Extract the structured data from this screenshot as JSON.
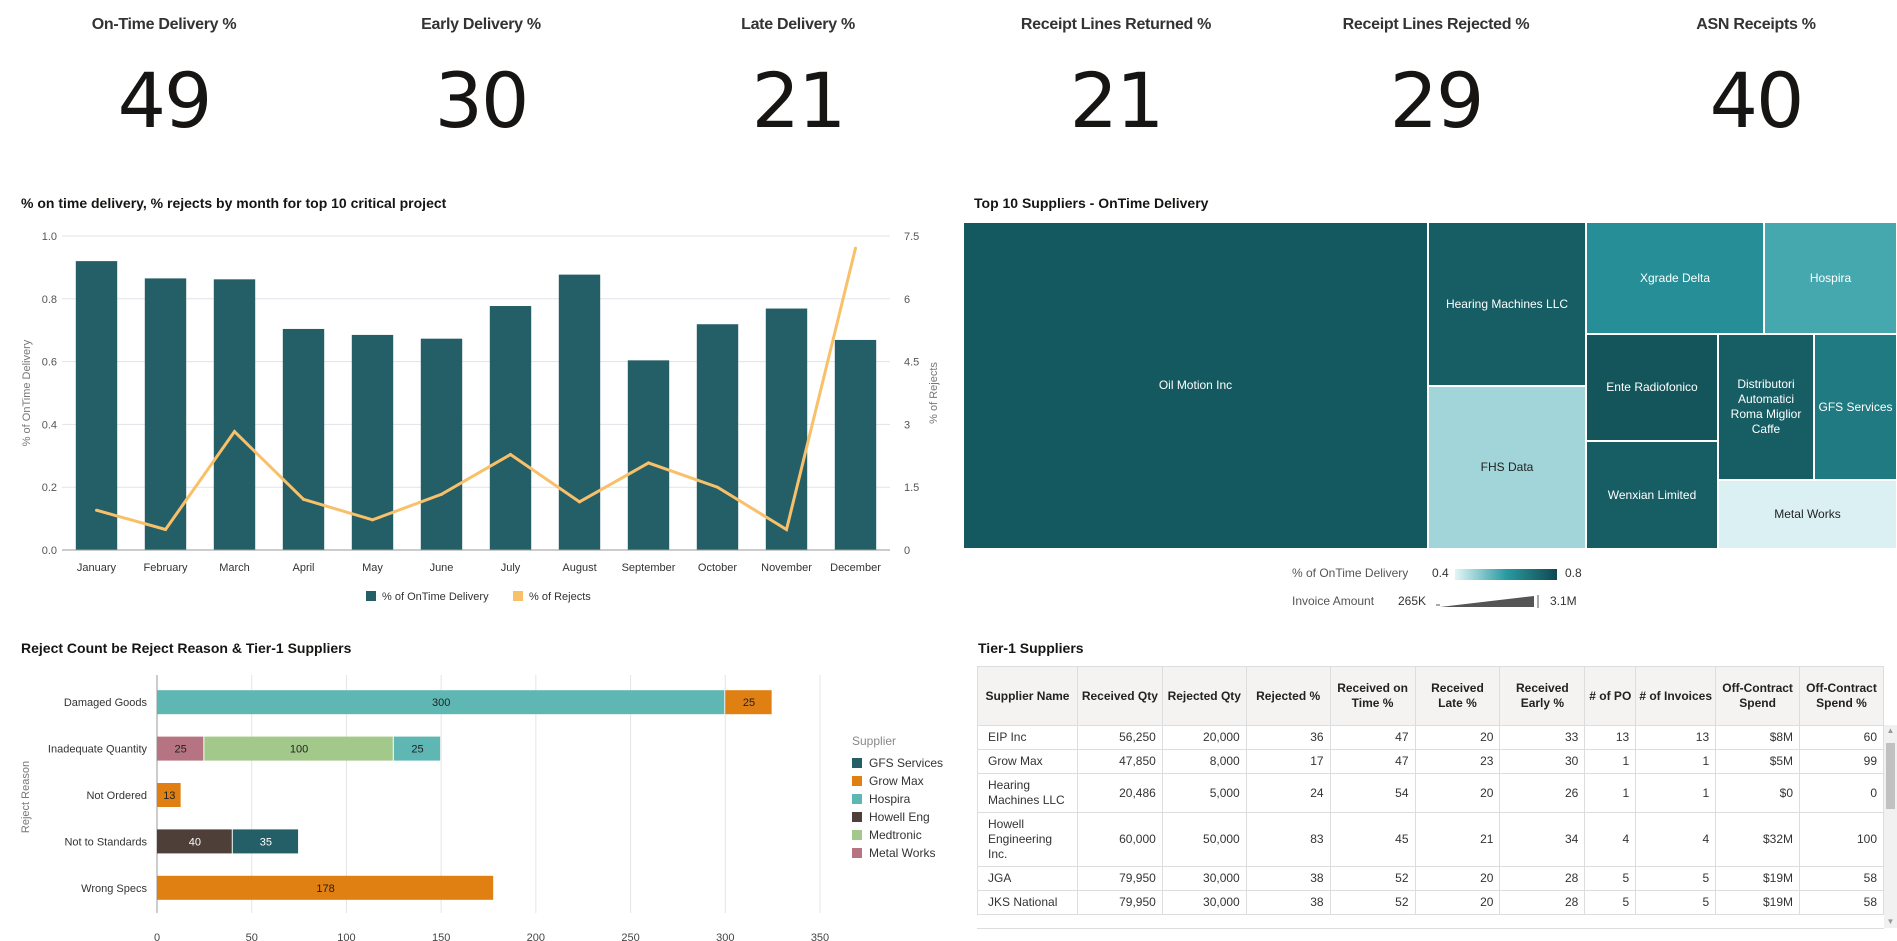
{
  "kpis": [
    {
      "title": "On-Time Delivery %",
      "value": "49"
    },
    {
      "title": "Early Delivery %",
      "value": "30"
    },
    {
      "title": "Late Delivery %",
      "value": "21"
    },
    {
      "title": "Receipt Lines Returned %",
      "value": "21"
    },
    {
      "title": "Receipt Lines Rejected %",
      "value": "29"
    },
    {
      "title": "ASN Receipts %",
      "value": "40"
    }
  ],
  "colors": {
    "teal_dark": "#245e66",
    "orange_line": "#f9c06a",
    "gfs": "#245e66",
    "grow_max": "#e07f12",
    "hospira": "#5fb7b4",
    "howell": "#4e4038",
    "medtronic": "#a2c98a",
    "metal_works": "#b67482"
  },
  "chart_data": [
    {
      "type": "bar",
      "title": "% on time delivery, % rejects by month for top 10 critical project",
      "categories": [
        "January",
        "February",
        "March",
        "April",
        "May",
        "June",
        "July",
        "August",
        "September",
        "October",
        "November",
        "December"
      ],
      "series": [
        {
          "name": "% of OnTime Delivery",
          "type": "bar",
          "axis": "left",
          "values": [
            0.92,
            0.865,
            0.862,
            0.704,
            0.685,
            0.673,
            0.777,
            0.877,
            0.604,
            0.719,
            0.769,
            0.669
          ]
        },
        {
          "name": "% of Rejects",
          "type": "line",
          "axis": "right",
          "values": [
            0.95,
            0.49,
            2.83,
            1.21,
            0.72,
            1.33,
            2.28,
            1.15,
            2.08,
            1.5,
            0.49,
            7.21
          ]
        }
      ],
      "ylabel": "% of OnTime Delivery",
      "y2label": "% of Rejects",
      "ylim": [
        0,
        1.0
      ],
      "y2lim": [
        0,
        7.5
      ],
      "yticks": [
        "0.0",
        "0.2",
        "0.4",
        "0.6",
        "0.8",
        "1.0"
      ],
      "y2ticks": [
        "0",
        "1.5",
        "3",
        "4.5",
        "6",
        "7.5"
      ],
      "grid": true,
      "legend": "bottom"
    },
    {
      "type": "treemap",
      "title": "Top 10 Suppliers - OnTime Delivery",
      "items": [
        {
          "name": "Oil Motion Inc",
          "color_value": 0.76
        },
        {
          "name": "Hearing Machines LLC",
          "color_value": 0.75
        },
        {
          "name": "FHS Data",
          "color_value": 0.47
        },
        {
          "name": "Xgrade Delta",
          "color_value": 0.63
        },
        {
          "name": "Hospira",
          "color_value": 0.57
        },
        {
          "name": "Ente Radiofonico",
          "color_value": 0.77
        },
        {
          "name": "Wenxian Limited",
          "color_value": 0.75
        },
        {
          "name": "Distributori Automatici Roma Miglior Caffe",
          "color_value": 0.75
        },
        {
          "name": "GFS Services",
          "color_value": 0.68
        },
        {
          "name": "Metal Works",
          "color_value": 0.41
        }
      ],
      "color_legend": {
        "label": "% of OnTime Delivery",
        "min": "0.4",
        "max": "0.8"
      },
      "size_legend": {
        "label": "Invoice Amount",
        "min": "265K",
        "max": "3.1M"
      }
    },
    {
      "type": "bar",
      "orientation": "horizontal",
      "stacked": true,
      "title": "Reject Count be Reject Reason & Tier-1 Suppliers",
      "categories": [
        "Damaged Goods",
        "Inadequate Quantity",
        "Not Ordered",
        "Not to Standards",
        "Wrong Specs"
      ],
      "ylabel": "Reject Reason",
      "xlim": [
        0,
        350
      ],
      "xticks": [
        "0",
        "50",
        "100",
        "150",
        "200",
        "250",
        "300",
        "350"
      ],
      "legend_title": "Supplier",
      "legend": "right",
      "legend_items": [
        "GFS Services",
        "Grow Max",
        "Hospira",
        "Howell Eng",
        "Medtronic",
        "Metal Works"
      ],
      "stacks": [
        [
          {
            "supplier": "Hospira",
            "value": 300
          },
          {
            "supplier": "Grow Max",
            "value": 25
          }
        ],
        [
          {
            "supplier": "Metal Works",
            "value": 25
          },
          {
            "supplier": "Medtronic",
            "value": 100
          },
          {
            "supplier": "Hospira",
            "value": 25
          }
        ],
        [
          {
            "supplier": "Grow Max",
            "value": 13
          }
        ],
        [
          {
            "supplier": "Howell Eng",
            "value": 40
          },
          {
            "supplier": "GFS Services",
            "value": 35
          }
        ],
        [
          {
            "supplier": "Grow Max",
            "value": 178
          }
        ]
      ]
    }
  ],
  "table": {
    "title": "Tier-1 Suppliers",
    "columns": [
      "Supplier Name",
      "Received Qty",
      "Rejected Qty",
      "Rejected %",
      "Received on Time %",
      "Received Late %",
      "Received Early %",
      "# of PO",
      "# of Invoices",
      "Off-Contract Spend",
      "Off-Contract Spend %"
    ],
    "rows": [
      [
        "EIP Inc",
        "56,250",
        "20,000",
        "36",
        "47",
        "20",
        "33",
        "13",
        "13",
        "$8M",
        "60"
      ],
      [
        "Grow Max",
        "47,850",
        "8,000",
        "17",
        "47",
        "23",
        "30",
        "1",
        "1",
        "$5M",
        "99"
      ],
      [
        "Hearing Machines LLC",
        "20,486",
        "5,000",
        "24",
        "54",
        "20",
        "26",
        "1",
        "1",
        "$0",
        "0"
      ],
      [
        "Howell Engineering Inc.",
        "60,000",
        "50,000",
        "83",
        "45",
        "21",
        "34",
        "4",
        "4",
        "$32M",
        "100"
      ],
      [
        "JGA",
        "79,950",
        "30,000",
        "38",
        "52",
        "20",
        "28",
        "5",
        "5",
        "$19M",
        "58"
      ],
      [
        "JKS National",
        "79,950",
        "30,000",
        "38",
        "52",
        "20",
        "28",
        "5",
        "5",
        "$19M",
        "58"
      ]
    ]
  }
}
